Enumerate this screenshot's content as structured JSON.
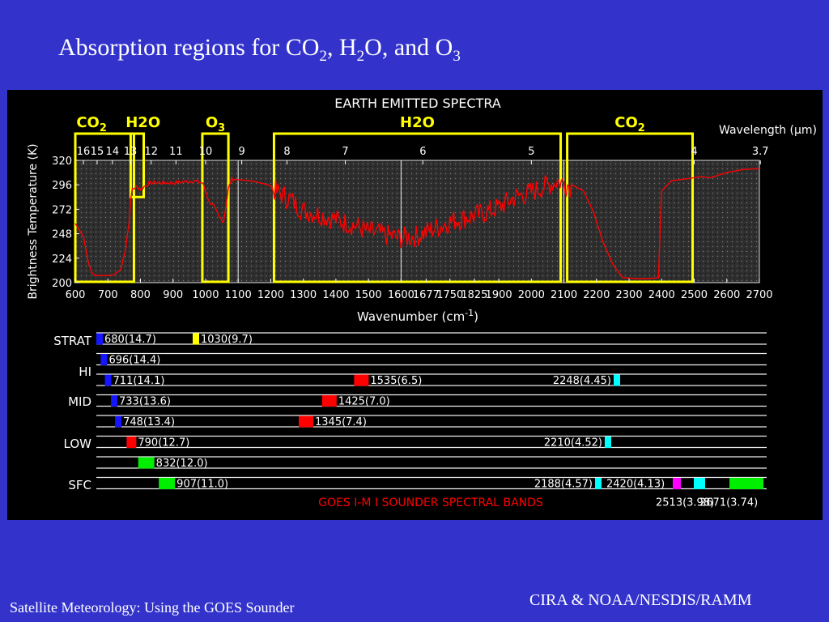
{
  "slide": {
    "title_parts": [
      "Absorption regions for CO",
      "2",
      ", H",
      "2",
      "O, and O",
      "3"
    ],
    "footer_left": "Satellite Meteorology: Using the GOES Sounder",
    "footer_right": "CIRA & NOAA/NESDIS/RAMM"
  },
  "chart_data": {
    "type": "line",
    "title": "EARTH EMITTED SPECTRA",
    "xlabel": "Wavenumber (cm-1)",
    "ylabel": "Brightness Temperature (K)",
    "top_axis_label": "Wavelength (μm)",
    "xlim": [
      600,
      2700
    ],
    "ylim": [
      200,
      320
    ],
    "x_ticks": [
      600,
      700,
      800,
      900,
      1000,
      1100,
      1200,
      1300,
      1400,
      1500,
      1600,
      1677,
      1750,
      1825,
      1900,
      2000,
      2100,
      2200,
      2300,
      2400,
      2500,
      2600,
      2700
    ],
    "y_ticks": [
      200,
      224,
      248,
      272,
      296,
      320
    ],
    "top_ticks": [
      {
        "label": "16",
        "wn": 625
      },
      {
        "label": "15",
        "wn": 667
      },
      {
        "label": "14",
        "wn": 714
      },
      {
        "label": "13",
        "wn": 769
      },
      {
        "label": "12",
        "wn": 833
      },
      {
        "label": "11",
        "wn": 909
      },
      {
        "label": "10",
        "wn": 1000
      },
      {
        "label": "9",
        "wn": 1111
      },
      {
        "label": "8",
        "wn": 1250
      },
      {
        "label": "7",
        "wn": 1429
      },
      {
        "label": "6",
        "wn": 1667
      },
      {
        "label": "5",
        "wn": 2000
      },
      {
        "label": "4",
        "wn": 2500
      },
      {
        "label": "3.7",
        "wn": 2703
      }
    ],
    "absorption_regions": [
      {
        "gas": "CO2",
        "from": 600,
        "to": 780
      },
      {
        "gas": "H2O",
        "from": 770,
        "to": 810
      },
      {
        "gas": "O3",
        "from": 990,
        "to": 1070
      },
      {
        "gas": "H2O",
        "from": 1210,
        "to": 2090
      },
      {
        "gas": "CO2",
        "from": 2110,
        "to": 2495
      }
    ],
    "series": [
      {
        "color": "#ff0000",
        "points": [
          [
            600,
            258
          ],
          [
            625,
            245
          ],
          [
            640,
            220
          ],
          [
            650,
            210
          ],
          [
            660,
            207
          ],
          [
            680,
            207
          ],
          [
            700,
            207
          ],
          [
            720,
            208
          ],
          [
            740,
            213
          ],
          [
            755,
            235
          ],
          [
            765,
            260
          ],
          [
            770,
            280
          ],
          [
            775,
            292
          ],
          [
            790,
            294
          ],
          [
            800,
            292
          ],
          [
            830,
            298
          ],
          [
            870,
            298
          ],
          [
            910,
            298
          ],
          [
            960,
            300
          ],
          [
            990,
            298
          ],
          [
            1000,
            290
          ],
          [
            1010,
            280
          ],
          [
            1025,
            275
          ],
          [
            1040,
            265
          ],
          [
            1055,
            260
          ],
          [
            1070,
            292
          ],
          [
            1080,
            302
          ],
          [
            1100,
            301
          ],
          [
            1140,
            300
          ],
          [
            1180,
            297
          ],
          [
            1200,
            295
          ],
          [
            1230,
            289
          ],
          [
            1260,
            284
          ],
          [
            1300,
            273
          ],
          [
            1340,
            270
          ],
          [
            1380,
            266
          ],
          [
            1420,
            262
          ],
          [
            1460,
            258
          ],
          [
            1500,
            252
          ],
          [
            1540,
            250
          ],
          [
            1580,
            247
          ],
          [
            1600,
            246
          ],
          [
            1650,
            248
          ],
          [
            1700,
            255
          ],
          [
            1750,
            262
          ],
          [
            1800,
            266
          ],
          [
            1850,
            270
          ],
          [
            1900,
            276
          ],
          [
            1950,
            286
          ],
          [
            2000,
            291
          ],
          [
            2050,
            298
          ],
          [
            2080,
            302
          ],
          [
            2100,
            300
          ],
          [
            2130,
            295
          ],
          [
            2160,
            290
          ],
          [
            2190,
            270
          ],
          [
            2220,
            240
          ],
          [
            2250,
            218
          ],
          [
            2280,
            205
          ],
          [
            2320,
            204
          ],
          [
            2360,
            204
          ],
          [
            2390,
            205
          ],
          [
            2400,
            290
          ],
          [
            2430,
            300
          ],
          [
            2480,
            302
          ],
          [
            2520,
            304
          ],
          [
            2550,
            303
          ],
          [
            2600,
            308
          ],
          [
            2650,
            311
          ],
          [
            2700,
            312
          ]
        ]
      }
    ],
    "bands_title": "GOES I-M I SOUNDER SPECTRAL BANDS",
    "band_rows": [
      "STRAT",
      "HI",
      "MID",
      "LOW",
      "SFC"
    ],
    "bands": [
      {
        "label": "680(14.7)",
        "wn": 680,
        "row": 0,
        "color": "#1515ff"
      },
      {
        "label": "1030(9.7)",
        "wn": 1030,
        "row": 0,
        "color": "#ffff00"
      },
      {
        "label": "696(14.4)",
        "wn": 696,
        "row": 1,
        "color": "#1515ff"
      },
      {
        "label": "711(14.1)",
        "wn": 711,
        "row": 2,
        "color": "#1515ff"
      },
      {
        "label": "1535(6.5)",
        "wn": 1535,
        "row": 2,
        "color": "#ff0000"
      },
      {
        "label": "2248(4.45)",
        "wn": 2248,
        "row": 2,
        "color": "#00ffff"
      },
      {
        "label": "733(13.6)",
        "wn": 733,
        "row": 3,
        "color": "#1515ff"
      },
      {
        "label": "1425(7.0)",
        "wn": 1425,
        "row": 3,
        "color": "#ff0000"
      },
      {
        "label": "748(13.4)",
        "wn": 748,
        "row": 4,
        "color": "#1515ff"
      },
      {
        "label": "1345(7.4)",
        "wn": 1345,
        "row": 4,
        "color": "#ff0000"
      },
      {
        "label": "790(12.7)",
        "wn": 790,
        "row": 5,
        "color": "#ff0000"
      },
      {
        "label": "2210(4.52)",
        "wn": 2210,
        "row": 5,
        "color": "#00ffff"
      },
      {
        "label": "832(12.0)",
        "wn": 832,
        "row": 6,
        "color": "#00ee00"
      },
      {
        "label": "907(11.0)",
        "wn": 907,
        "row": 7,
        "color": "#00ee00"
      },
      {
        "label": "2188(4.57)",
        "wn": 2188,
        "row": 7,
        "color": "#00ffff"
      },
      {
        "label": "2420(4.13)",
        "wn": 2420,
        "row": 7,
        "color": "#00ffff"
      },
      {
        "label": "2513(3.98)",
        "wn": 2513,
        "row": 7,
        "color": "#ff00ff"
      },
      {
        "label": "2671(3.74)",
        "wn": 2671,
        "row": 7,
        "color": "#00ee00"
      }
    ]
  }
}
